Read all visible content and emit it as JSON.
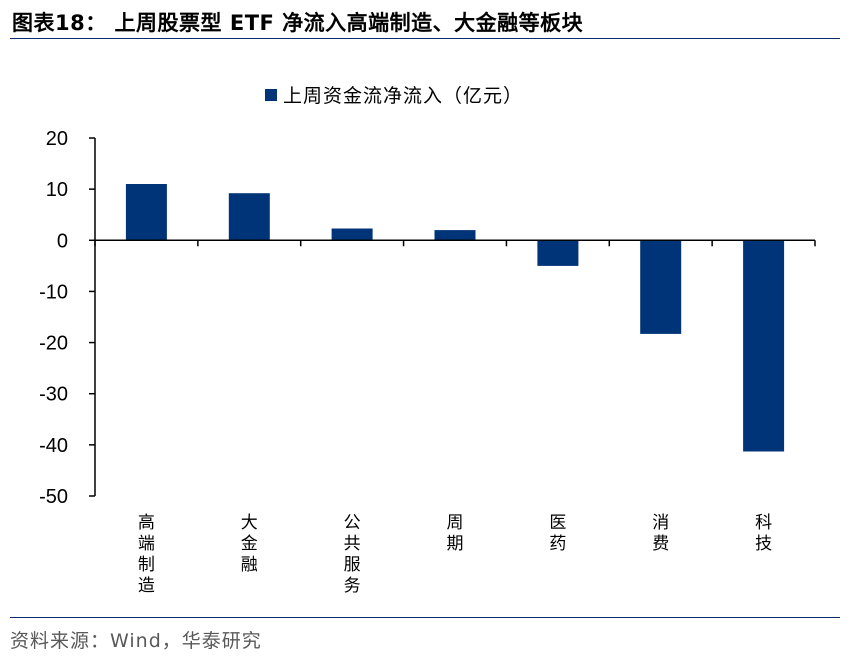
{
  "header": {
    "title": "图表18： 上周股票型 ETF 净流入高端制造、大金融等板块"
  },
  "footer": {
    "source": "资料来源：Wind，华泰研究"
  },
  "colors": {
    "bar": "#003478",
    "rule": "#0b2d6b",
    "axis": "#000000"
  },
  "chart_data": {
    "type": "bar",
    "title": "",
    "legend": {
      "label": "上周资金流净流入（亿元）",
      "position": "top-center"
    },
    "categories": [
      "高端制造",
      "大金融",
      "公共服务",
      "周期",
      "医药",
      "消费",
      "科技"
    ],
    "series": [
      {
        "name": "上周资金流净流入（亿元）",
        "values": [
          11,
          9.2,
          2.3,
          2.0,
          -5.0,
          -18.3,
          -41.3
        ]
      }
    ],
    "yticks": [
      20,
      10,
      0,
      -10,
      -20,
      -30,
      -40,
      -50
    ],
    "ylim": [
      -50,
      20
    ],
    "xlabel": "",
    "ylabel": "",
    "grid": false
  }
}
